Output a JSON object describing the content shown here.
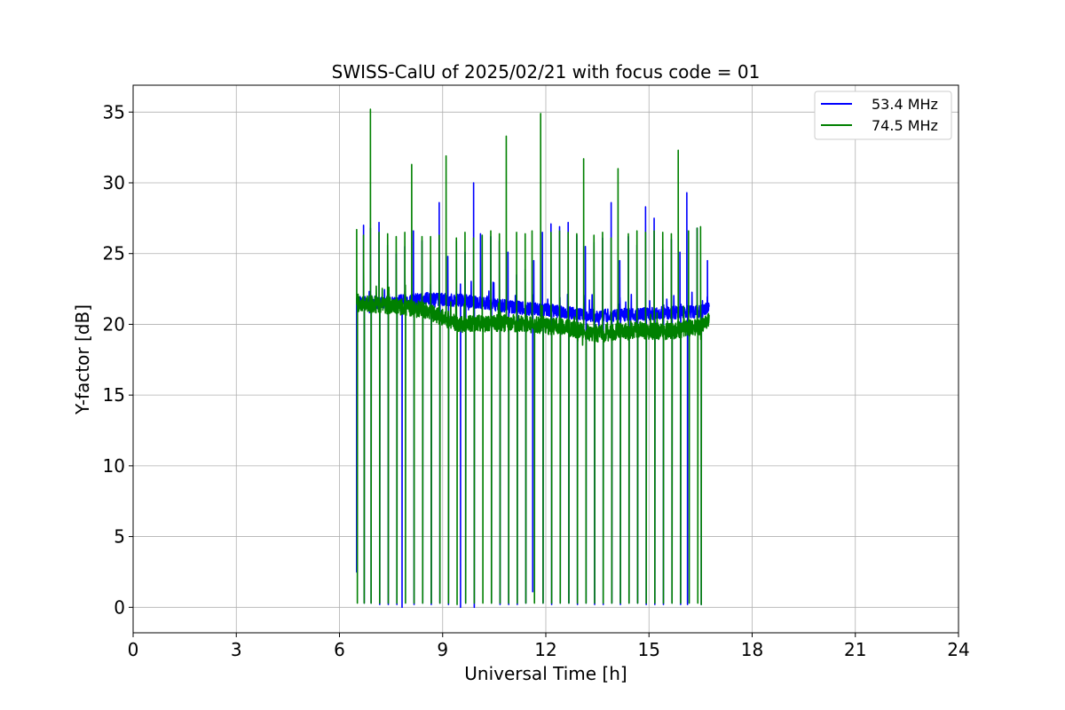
{
  "chart_data": {
    "type": "line",
    "title": "SWISS-CalU of 2025/02/21 with focus code = 01",
    "xlabel": "Universal Time [h]",
    "ylabel": "Y-factor [dB]",
    "xlim": [
      0,
      24
    ],
    "ylim": [
      -1.8,
      36.9
    ],
    "xticks": [
      0,
      3,
      6,
      9,
      12,
      15,
      18,
      21,
      24
    ],
    "yticks": [
      0,
      5,
      10,
      15,
      20,
      25,
      30,
      35
    ],
    "grid": true,
    "legend_position": "top-right",
    "cal_period_h": 0.25,
    "series": [
      {
        "name": "53.4 MHz",
        "color": "#0000ff",
        "time_range_h": [
          6.5,
          16.75
        ],
        "baseline": [
          [
            6.5,
            21.5
          ],
          [
            7.5,
            21.6
          ],
          [
            8.5,
            21.8
          ],
          [
            9.5,
            21.7
          ],
          [
            10.5,
            21.4
          ],
          [
            11.5,
            21.1
          ],
          [
            12.5,
            20.9
          ],
          [
            13.5,
            20.6
          ],
          [
            14.5,
            20.7
          ],
          [
            15.5,
            20.8
          ],
          [
            16.5,
            20.9
          ],
          [
            16.75,
            21.2
          ]
        ],
        "spike_peaks": [
          [
            6.5,
            2.5
          ],
          [
            6.7,
            27.0
          ],
          [
            6.9,
            26.8
          ],
          [
            7.15,
            27.2
          ],
          [
            7.4,
            25.6
          ],
          [
            7.65,
            25.0
          ],
          [
            7.9,
            25.5
          ],
          [
            8.15,
            26.6
          ],
          [
            8.4,
            25.9
          ],
          [
            8.65,
            24.5
          ],
          [
            8.9,
            28.6
          ],
          [
            9.15,
            24.8
          ],
          [
            9.4,
            25.9
          ],
          [
            9.65,
            25.1
          ],
          [
            9.9,
            30.0
          ],
          [
            10.1,
            26.4
          ],
          [
            10.4,
            26.2
          ],
          [
            10.65,
            25.9
          ],
          [
            10.9,
            25.1
          ],
          [
            11.15,
            23.5
          ],
          [
            11.4,
            23.9
          ],
          [
            11.65,
            24.5
          ],
          [
            11.9,
            26.5
          ],
          [
            12.15,
            27.1
          ],
          [
            12.4,
            26.9
          ],
          [
            12.65,
            27.2
          ],
          [
            12.9,
            26.3
          ],
          [
            13.15,
            25.5
          ],
          [
            13.4,
            25.8
          ],
          [
            13.65,
            26.1
          ],
          [
            13.9,
            28.6
          ],
          [
            14.15,
            24.5
          ],
          [
            14.4,
            26.2
          ],
          [
            14.65,
            25.6
          ],
          [
            14.9,
            28.3
          ],
          [
            15.15,
            27.5
          ],
          [
            15.4,
            25.3
          ],
          [
            15.65,
            26.0
          ],
          [
            15.9,
            25.1
          ],
          [
            16.1,
            29.3
          ],
          [
            16.4,
            26.8
          ],
          [
            16.7,
            24.5
          ]
        ],
        "dips": [
          [
            6.7,
            0.3
          ],
          [
            6.9,
            0.3
          ],
          [
            7.15,
            0.2
          ],
          [
            7.4,
            0.2
          ],
          [
            7.65,
            0.2
          ],
          [
            7.8,
            0.0
          ],
          [
            8.15,
            0.2
          ],
          [
            8.4,
            0.3
          ],
          [
            8.65,
            0.2
          ],
          [
            8.9,
            0.3
          ],
          [
            9.15,
            0.2
          ],
          [
            9.5,
            0.0
          ],
          [
            9.65,
            0.3
          ],
          [
            9.9,
            0.0
          ],
          [
            10.4,
            0.3
          ],
          [
            10.65,
            0.2
          ],
          [
            10.9,
            0.2
          ],
          [
            11.15,
            0.2
          ],
          [
            11.4,
            0.3
          ],
          [
            11.6,
            1.1
          ],
          [
            11.9,
            0.3
          ],
          [
            12.15,
            0.2
          ],
          [
            12.4,
            0.3
          ],
          [
            12.65,
            0.3
          ],
          [
            12.9,
            0.2
          ],
          [
            13.15,
            0.3
          ],
          [
            13.4,
            0.2
          ],
          [
            13.65,
            0.2
          ],
          [
            13.9,
            0.3
          ],
          [
            14.15,
            0.2
          ],
          [
            14.4,
            0.3
          ],
          [
            14.65,
            0.3
          ],
          [
            14.9,
            0.2
          ],
          [
            15.15,
            0.2
          ],
          [
            15.4,
            0.2
          ],
          [
            15.65,
            0.3
          ],
          [
            15.9,
            0.2
          ],
          [
            16.1,
            0.2
          ],
          [
            16.5,
            0.2
          ]
        ]
      },
      {
        "name": "74.5 MHz",
        "color": "#008000",
        "time_range_h": [
          6.5,
          16.75
        ],
        "baseline": [
          [
            6.5,
            21.5
          ],
          [
            7.5,
            21.3
          ],
          [
            8.5,
            21.0
          ],
          [
            9.0,
            20.5
          ],
          [
            9.5,
            20.0
          ],
          [
            10.5,
            20.1
          ],
          [
            11.5,
            20.0
          ],
          [
            12.5,
            19.8
          ],
          [
            13.5,
            19.3
          ],
          [
            14.5,
            19.6
          ],
          [
            15.5,
            19.5
          ],
          [
            16.5,
            19.8
          ],
          [
            16.75,
            20.5
          ]
        ],
        "spike_peaks": [
          [
            6.5,
            26.7
          ],
          [
            6.7,
            26.3
          ],
          [
            6.9,
            35.2
          ],
          [
            7.15,
            26.5
          ],
          [
            7.4,
            26.4
          ],
          [
            7.65,
            26.2
          ],
          [
            7.9,
            26.5
          ],
          [
            8.1,
            31.3
          ],
          [
            8.4,
            26.2
          ],
          [
            8.65,
            26.2
          ],
          [
            8.9,
            26.3
          ],
          [
            9.1,
            31.9
          ],
          [
            9.4,
            26.1
          ],
          [
            9.65,
            26.5
          ],
          [
            9.9,
            26.1
          ],
          [
            10.15,
            26.3
          ],
          [
            10.4,
            26.6
          ],
          [
            10.65,
            26.4
          ],
          [
            10.85,
            33.3
          ],
          [
            11.15,
            26.5
          ],
          [
            11.4,
            26.4
          ],
          [
            11.6,
            26.6
          ],
          [
            11.85,
            34.9
          ],
          [
            12.15,
            26.5
          ],
          [
            12.4,
            26.6
          ],
          [
            12.65,
            26.5
          ],
          [
            12.9,
            26.4
          ],
          [
            13.1,
            31.7
          ],
          [
            13.4,
            26.3
          ],
          [
            13.65,
            26.5
          ],
          [
            13.9,
            26.1
          ],
          [
            14.1,
            31.0
          ],
          [
            14.4,
            26.4
          ],
          [
            14.65,
            26.6
          ],
          [
            14.9,
            26.5
          ],
          [
            15.15,
            26.6
          ],
          [
            15.4,
            26.5
          ],
          [
            15.65,
            26.4
          ],
          [
            15.85,
            32.3
          ],
          [
            16.15,
            26.6
          ],
          [
            16.4,
            26.8
          ],
          [
            16.5,
            26.9
          ]
        ],
        "dips": [
          [
            6.5,
            0.3
          ],
          [
            6.7,
            0.3
          ],
          [
            6.9,
            0.3
          ],
          [
            7.15,
            0.3
          ],
          [
            7.4,
            0.3
          ],
          [
            7.65,
            0.3
          ],
          [
            7.9,
            0.3
          ],
          [
            8.15,
            0.3
          ],
          [
            8.4,
            0.3
          ],
          [
            8.65,
            0.3
          ],
          [
            8.9,
            0.3
          ],
          [
            9.15,
            0.3
          ],
          [
            9.4,
            0.2
          ],
          [
            9.65,
            0.3
          ],
          [
            9.9,
            0.3
          ],
          [
            10.15,
            0.3
          ],
          [
            10.4,
            0.3
          ],
          [
            10.65,
            0.3
          ],
          [
            10.9,
            0.3
          ],
          [
            11.15,
            0.3
          ],
          [
            11.4,
            0.3
          ],
          [
            11.65,
            0.3
          ],
          [
            11.9,
            0.3
          ],
          [
            12.15,
            0.3
          ],
          [
            12.4,
            0.3
          ],
          [
            12.65,
            0.3
          ],
          [
            12.9,
            0.3
          ],
          [
            13.15,
            0.3
          ],
          [
            13.4,
            0.3
          ],
          [
            13.65,
            0.3
          ],
          [
            13.9,
            0.3
          ],
          [
            14.15,
            0.3
          ],
          [
            14.4,
            0.3
          ],
          [
            14.65,
            0.3
          ],
          [
            14.9,
            0.3
          ],
          [
            15.15,
            0.3
          ],
          [
            15.4,
            0.3
          ],
          [
            15.65,
            0.3
          ],
          [
            15.9,
            0.3
          ],
          [
            16.15,
            0.3
          ],
          [
            16.4,
            0.3
          ],
          [
            16.5,
            0.2
          ]
        ]
      }
    ]
  }
}
